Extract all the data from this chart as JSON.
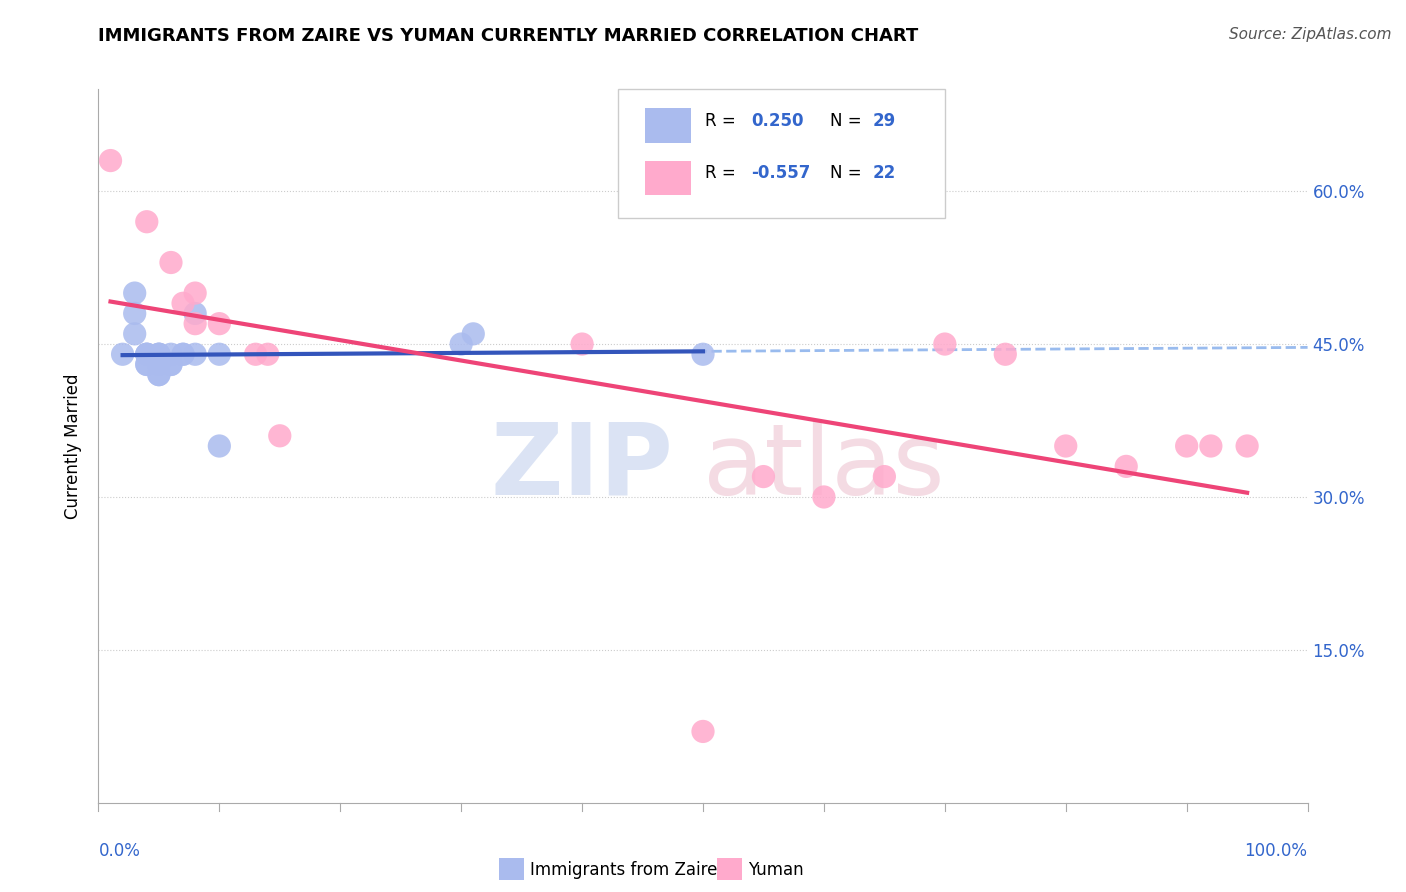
{
  "title": "IMMIGRANTS FROM ZAIRE VS YUMAN CURRENTLY MARRIED CORRELATION CHART",
  "source": "Source: ZipAtlas.com",
  "ylabel": "Currently Married",
  "xlim": [
    0.0,
    1.0
  ],
  "ylim": [
    0.0,
    0.7
  ],
  "yticks": [
    0.0,
    0.15,
    0.3,
    0.45,
    0.6
  ],
  "ytick_labels": [
    "",
    "15.0%",
    "30.0%",
    "45.0%",
    "60.0%"
  ],
  "background_color": "#ffffff",
  "grid_color": "#cccccc",
  "legend_R1": "0.250",
  "legend_N1": "29",
  "legend_R2": "-0.557",
  "legend_N2": "22",
  "blue_scatter_color": "#aabbee",
  "pink_scatter_color": "#ffaacc",
  "blue_line_color": "#3355bb",
  "pink_line_color": "#ee4477",
  "blue_dashed_color": "#99bbee",
  "label_blue": "Immigrants from Zaire",
  "label_pink": "Yuman",
  "blue_x": [
    0.02,
    0.03,
    0.03,
    0.03,
    0.04,
    0.04,
    0.04,
    0.04,
    0.04,
    0.05,
    0.05,
    0.05,
    0.05,
    0.05,
    0.05,
    0.05,
    0.05,
    0.06,
    0.06,
    0.06,
    0.07,
    0.07,
    0.08,
    0.08,
    0.1,
    0.1,
    0.3,
    0.31,
    0.5
  ],
  "blue_y": [
    0.44,
    0.5,
    0.48,
    0.46,
    0.44,
    0.44,
    0.44,
    0.43,
    0.43,
    0.44,
    0.44,
    0.44,
    0.43,
    0.43,
    0.43,
    0.42,
    0.42,
    0.43,
    0.43,
    0.44,
    0.44,
    0.44,
    0.44,
    0.48,
    0.44,
    0.35,
    0.45,
    0.46,
    0.44
  ],
  "pink_x": [
    0.01,
    0.04,
    0.06,
    0.07,
    0.08,
    0.08,
    0.1,
    0.13,
    0.14,
    0.15,
    0.4,
    0.5,
    0.55,
    0.6,
    0.65,
    0.7,
    0.75,
    0.8,
    0.85,
    0.9,
    0.92,
    0.95
  ],
  "pink_y": [
    0.63,
    0.57,
    0.53,
    0.49,
    0.5,
    0.47,
    0.47,
    0.44,
    0.44,
    0.36,
    0.45,
    0.07,
    0.32,
    0.3,
    0.32,
    0.45,
    0.44,
    0.35,
    0.33,
    0.35,
    0.35,
    0.35
  ]
}
